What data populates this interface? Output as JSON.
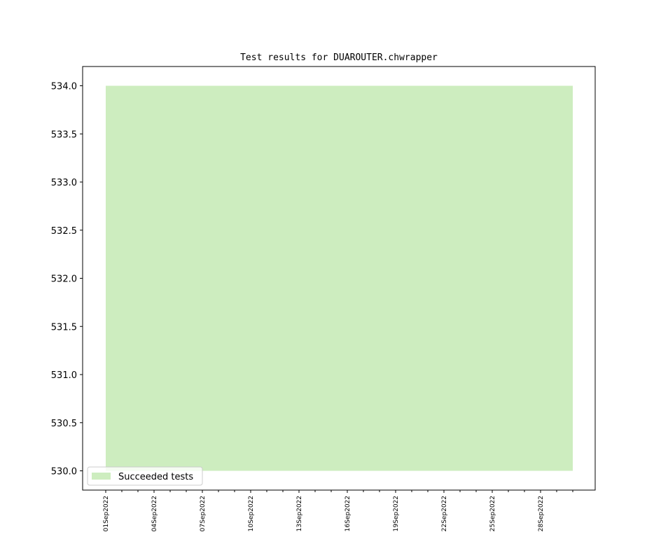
{
  "chart_data": {
    "type": "area",
    "title": "Test results for DUAROUTER.chwrapper",
    "x": [
      "2022-09-01",
      "2022-09-02",
      "2022-09-03",
      "2022-09-04",
      "2022-09-05",
      "2022-09-06",
      "2022-09-07",
      "2022-09-08",
      "2022-09-09",
      "2022-09-10",
      "2022-09-11",
      "2022-09-12",
      "2022-09-13",
      "2022-09-14",
      "2022-09-15",
      "2022-09-16",
      "2022-09-17",
      "2022-09-18",
      "2022-09-19",
      "2022-09-20",
      "2022-09-21",
      "2022-09-22",
      "2022-09-23",
      "2022-09-24",
      "2022-09-25",
      "2022-09-26",
      "2022-09-27",
      "2022-09-28",
      "2022-09-29",
      "2022-09-30"
    ],
    "series": [
      {
        "name": "Succeeded tests",
        "color": "#cdedbf",
        "values": [
          534,
          534,
          534,
          534,
          534,
          534,
          534,
          534,
          534,
          534,
          534,
          534,
          534,
          534,
          534,
          534,
          534,
          534,
          534,
          534,
          534,
          534,
          534,
          534,
          534,
          534,
          534,
          534,
          534,
          534
        ],
        "lower": [
          530,
          530,
          530,
          530,
          530,
          530,
          530,
          530,
          530,
          530,
          530,
          530,
          530,
          530,
          530,
          530,
          530,
          530,
          530,
          530,
          530,
          530,
          530,
          530,
          530,
          530,
          530,
          530,
          530,
          530
        ]
      }
    ],
    "ylim": [
      529.8,
      534.2
    ],
    "yticks": [
      {
        "value": 530,
        "label": "530.0"
      },
      {
        "value": 530.5,
        "label": "530.5"
      },
      {
        "value": 531,
        "label": "531.0"
      },
      {
        "value": 531.5,
        "label": "531.5"
      },
      {
        "value": 532,
        "label": "532.0"
      },
      {
        "value": 532.5,
        "label": "532.5"
      },
      {
        "value": 533,
        "label": "533.0"
      },
      {
        "value": 533.5,
        "label": "533.5"
      },
      {
        "value": 534,
        "label": "534.0"
      }
    ],
    "xticks": [
      {
        "value": "2022-09-01",
        "label": "01Sep2022"
      },
      {
        "value": "2022-09-04",
        "label": "04Sep2022"
      },
      {
        "value": "2022-09-07",
        "label": "07Sep2022"
      },
      {
        "value": "2022-09-10",
        "label": "10Sep2022"
      },
      {
        "value": "2022-09-13",
        "label": "13Sep2022"
      },
      {
        "value": "2022-09-16",
        "label": "16Sep2022"
      },
      {
        "value": "2022-09-19",
        "label": "19Sep2022"
      },
      {
        "value": "2022-09-22",
        "label": "22Sep2022"
      },
      {
        "value": "2022-09-25",
        "label": "25Sep2022"
      },
      {
        "value": "2022-09-28",
        "label": "28Sep2022"
      }
    ],
    "legend": "lower left"
  }
}
